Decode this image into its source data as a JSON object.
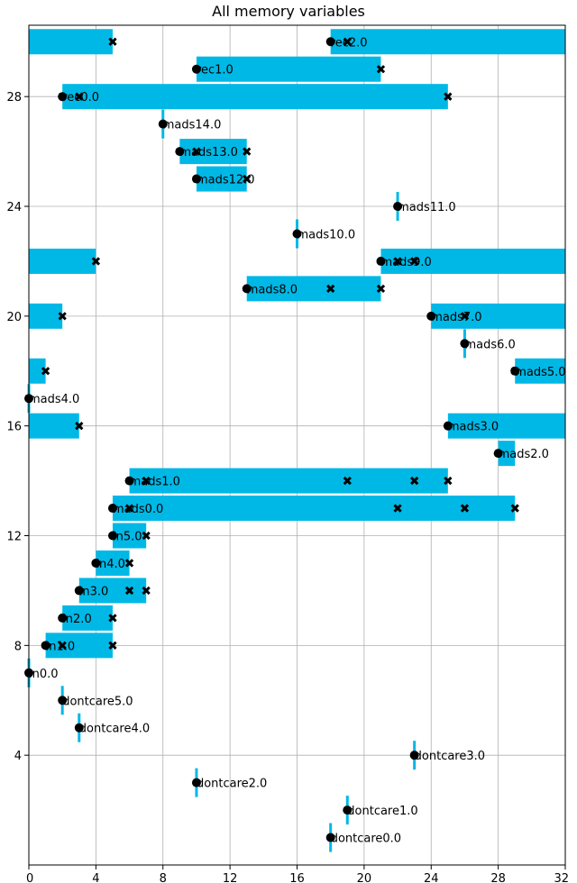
{
  "chart_data": {
    "type": "bar",
    "orientation": "horizontal-interval",
    "title": "All memory variables",
    "xlabel": "",
    "ylabel": "",
    "xlim": [
      0,
      32
    ],
    "ylim": [
      0,
      30.6
    ],
    "xticks": [
      0,
      4,
      8,
      12,
      16,
      20,
      24,
      28,
      32
    ],
    "yticks": [
      4,
      8,
      12,
      16,
      20,
      24,
      28
    ],
    "grid": true,
    "bar_color": "#00b8e6",
    "marker_color": "#000000",
    "variables": [
      {
        "name": "dontcare0.0",
        "y": 1,
        "segments": [
          [
            18,
            18
          ]
        ],
        "start": 18,
        "uses": []
      },
      {
        "name": "dontcare1.0",
        "y": 2,
        "segments": [
          [
            19,
            19
          ]
        ],
        "start": 19,
        "uses": []
      },
      {
        "name": "dontcare2.0",
        "y": 3,
        "segments": [
          [
            10,
            10
          ]
        ],
        "start": 10,
        "uses": []
      },
      {
        "name": "dontcare3.0",
        "y": 4,
        "segments": [
          [
            23,
            23
          ]
        ],
        "start": 23,
        "uses": []
      },
      {
        "name": "dontcare4.0",
        "y": 5,
        "segments": [
          [
            3,
            3
          ]
        ],
        "start": 3,
        "uses": []
      },
      {
        "name": "dontcare5.0",
        "y": 6,
        "segments": [
          [
            2,
            2
          ]
        ],
        "start": 2,
        "uses": []
      },
      {
        "name": "in0.0",
        "y": 7,
        "segments": [
          [
            0,
            0
          ]
        ],
        "start": 0,
        "uses": []
      },
      {
        "name": "in1.0",
        "y": 8,
        "segments": [
          [
            1,
            5
          ]
        ],
        "start": 1,
        "uses": [
          2,
          5
        ]
      },
      {
        "name": "in2.0",
        "y": 9,
        "segments": [
          [
            2,
            5
          ]
        ],
        "start": 2,
        "uses": [
          5
        ]
      },
      {
        "name": "in3.0",
        "y": 10,
        "segments": [
          [
            3,
            7
          ]
        ],
        "start": 3,
        "uses": [
          6,
          7
        ]
      },
      {
        "name": "in4.0",
        "y": 11,
        "segments": [
          [
            4,
            6
          ]
        ],
        "start": 4,
        "uses": [
          6
        ]
      },
      {
        "name": "in5.0",
        "y": 12,
        "segments": [
          [
            5,
            7
          ]
        ],
        "start": 5,
        "uses": [
          7
        ]
      },
      {
        "name": "mads0.0",
        "y": 13,
        "segments": [
          [
            5,
            29
          ]
        ],
        "start": 5,
        "uses": [
          6,
          22,
          26,
          29
        ]
      },
      {
        "name": "mads1.0",
        "y": 14,
        "segments": [
          [
            6,
            25
          ]
        ],
        "start": 6,
        "uses": [
          7,
          19,
          23,
          25
        ]
      },
      {
        "name": "mads2.0",
        "y": 15,
        "segments": [
          [
            28,
            29
          ]
        ],
        "start": 28,
        "uses": []
      },
      {
        "name": "mads3.0",
        "y": 16,
        "segments": [
          [
            25,
            32
          ],
          [
            0,
            3
          ]
        ],
        "start": 25,
        "uses": [
          3
        ]
      },
      {
        "name": "mads4.0",
        "y": 17,
        "segments": [
          [
            0,
            0
          ]
        ],
        "start": 0,
        "uses": []
      },
      {
        "name": "mads5.0",
        "y": 18,
        "segments": [
          [
            29,
            32
          ],
          [
            0,
            1
          ]
        ],
        "start": 29,
        "uses": [
          29,
          1
        ]
      },
      {
        "name": "mads6.0",
        "y": 19,
        "segments": [
          [
            26,
            26
          ]
        ],
        "start": 26,
        "uses": []
      },
      {
        "name": "mads7.0",
        "y": 20,
        "segments": [
          [
            24,
            32
          ],
          [
            0,
            2
          ]
        ],
        "start": 24,
        "uses": [
          26,
          2
        ]
      },
      {
        "name": "mads8.0",
        "y": 21,
        "segments": [
          [
            13,
            21
          ]
        ],
        "start": 13,
        "uses": [
          18,
          21
        ]
      },
      {
        "name": "mads9.0",
        "y": 22,
        "segments": [
          [
            21,
            32
          ],
          [
            0,
            4
          ]
        ],
        "start": 21,
        "uses": [
          22,
          23,
          4
        ]
      },
      {
        "name": "mads10.0",
        "y": 23,
        "segments": [
          [
            16,
            16
          ]
        ],
        "start": 16,
        "uses": []
      },
      {
        "name": "mads11.0",
        "y": 24,
        "segments": [
          [
            22,
            22
          ]
        ],
        "start": 22,
        "uses": []
      },
      {
        "name": "mads12.0",
        "y": 25,
        "segments": [
          [
            10,
            13
          ]
        ],
        "start": 10,
        "uses": [
          13
        ]
      },
      {
        "name": "mads13.0",
        "y": 26,
        "segments": [
          [
            9,
            13
          ]
        ],
        "start": 9,
        "uses": [
          10,
          13
        ]
      },
      {
        "name": "mads14.0",
        "y": 27,
        "segments": [
          [
            8,
            8
          ]
        ],
        "start": 8,
        "uses": []
      },
      {
        "name": "rec0.0",
        "y": 28,
        "segments": [
          [
            2,
            25
          ]
        ],
        "start": 2,
        "uses": [
          3,
          25
        ]
      },
      {
        "name": "rec1.0",
        "y": 29,
        "segments": [
          [
            10,
            21
          ]
        ],
        "start": 10,
        "uses": [
          21
        ]
      },
      {
        "name": "rec2.0",
        "y": 30,
        "segments": [
          [
            18,
            32
          ],
          [
            0,
            5
          ]
        ],
        "start": 18,
        "uses": [
          19,
          5
        ]
      }
    ]
  }
}
